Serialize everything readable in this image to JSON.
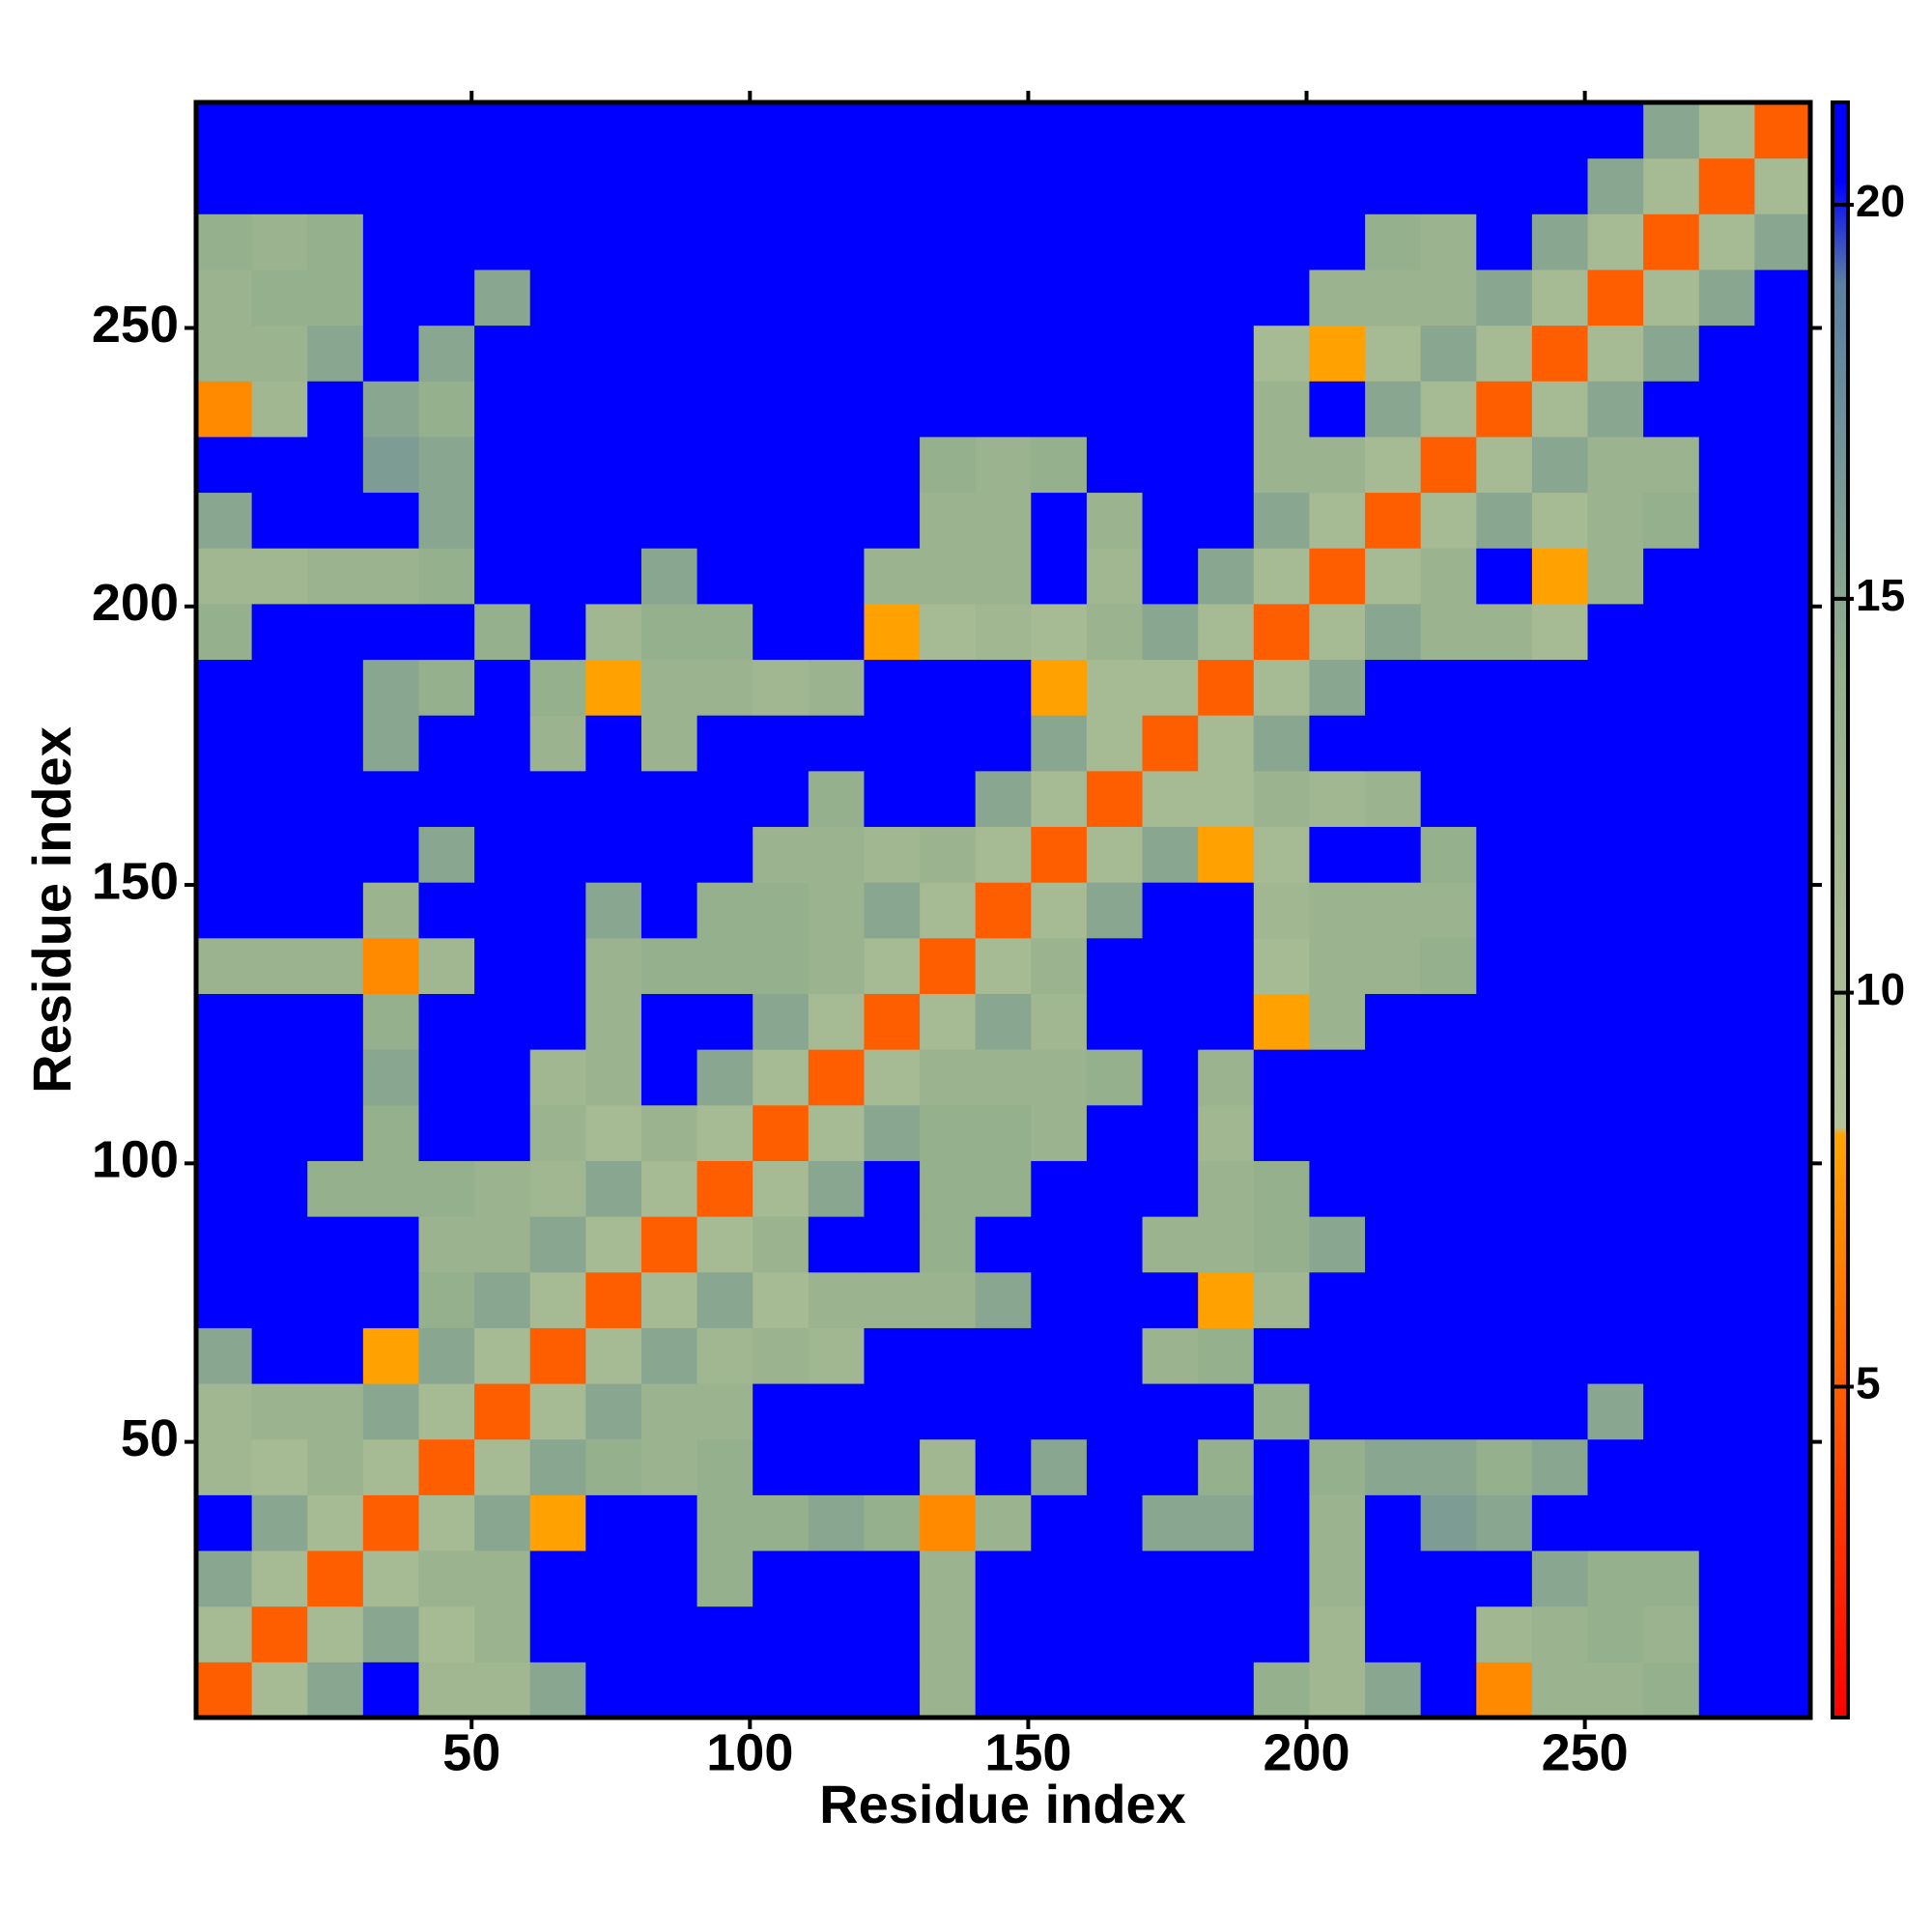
{
  "chart_data": {
    "type": "heatmap",
    "x_label": "Residue index",
    "y_label": "Residue index",
    "xbins": [
      0.5,
      10.5,
      20.5,
      30.5,
      40.5,
      50.5,
      60.5,
      70.5,
      80.5,
      90.5,
      100.5,
      110.5,
      120.5,
      130.5,
      140.5,
      150.5,
      160.5,
      170.5,
      180.5,
      190.5,
      200.5,
      210.5,
      220.5,
      230.5,
      240.5,
      250.5,
      260.5,
      270.5,
      280.5,
      290.5
    ],
    "ybins": [
      0.5,
      10.5,
      20.5,
      30.5,
      40.5,
      50.5,
      60.5,
      70.5,
      80.5,
      90.5,
      100.5,
      110.5,
      120.5,
      130.5,
      140.5,
      150.5,
      160.5,
      170.5,
      180.5,
      190.5,
      200.5,
      210.5,
      220.5,
      230.5,
      240.5,
      250.5,
      260.5,
      270.5,
      280.5,
      290.5
    ],
    "z": [
      [
        5,
        11,
        15,
        21,
        12,
        12,
        15,
        21,
        21,
        21,
        21,
        21,
        21,
        13,
        21,
        21,
        21,
        21,
        21,
        14,
        12,
        15,
        21,
        7,
        13,
        13,
        14,
        21,
        21
      ],
      [
        11,
        5,
        11,
        15,
        11,
        13,
        21,
        21,
        21,
        21,
        21,
        21,
        21,
        13,
        21,
        21,
        21,
        21,
        21,
        21,
        12,
        21,
        21,
        12,
        13,
        14,
        13,
        21,
        21
      ],
      [
        15,
        11,
        5,
        11,
        13,
        13,
        21,
        21,
        21,
        14,
        21,
        21,
        21,
        13,
        21,
        21,
        21,
        21,
        21,
        21,
        13,
        21,
        21,
        21,
        15,
        14,
        14,
        21,
        21
      ],
      [
        21,
        15,
        11,
        5,
        11,
        15,
        8,
        21,
        21,
        14,
        14,
        15,
        14,
        7,
        13,
        21,
        21,
        15,
        15,
        21,
        13,
        21,
        16,
        15,
        21,
        21,
        21,
        21,
        21
      ],
      [
        12,
        11,
        13,
        11,
        5,
        11,
        15,
        14,
        13,
        14,
        21,
        21,
        21,
        12,
        21,
        15,
        21,
        21,
        14,
        21,
        14,
        15,
        15,
        14,
        15,
        21,
        21,
        21,
        21
      ],
      [
        12,
        13,
        13,
        15,
        11,
        5,
        11,
        15,
        13,
        13,
        21,
        21,
        21,
        21,
        21,
        21,
        21,
        21,
        21,
        14,
        21,
        21,
        21,
        21,
        21,
        15,
        21,
        21,
        21
      ],
      [
        15,
        21,
        21,
        8,
        15,
        11,
        5,
        11,
        15,
        12,
        13,
        12,
        21,
        21,
        21,
        21,
        21,
        13,
        14,
        21,
        21,
        21,
        21,
        21,
        21,
        21,
        21,
        21,
        21
      ],
      [
        21,
        21,
        21,
        21,
        14,
        15,
        11,
        5,
        11,
        15,
        11,
        13,
        13,
        13,
        15,
        21,
        21,
        21,
        8,
        12,
        21,
        21,
        21,
        21,
        21,
        21,
        21,
        21,
        21
      ],
      [
        21,
        21,
        21,
        21,
        13,
        13,
        15,
        11,
        5,
        11,
        13,
        21,
        21,
        14,
        21,
        21,
        21,
        13,
        13,
        14,
        15,
        21,
        21,
        21,
        21,
        21,
        21,
        21,
        21
      ],
      [
        21,
        21,
        14,
        14,
        14,
        13,
        12,
        15,
        11,
        5,
        11,
        15,
        21,
        14,
        14,
        21,
        21,
        21,
        13,
        14,
        21,
        21,
        21,
        21,
        21,
        21,
        21,
        21,
        21
      ],
      [
        21,
        21,
        21,
        14,
        21,
        21,
        13,
        11,
        13,
        11,
        5,
        11,
        15,
        14,
        14,
        13,
        21,
        21,
        12,
        21,
        21,
        21,
        21,
        21,
        21,
        21,
        21,
        21,
        21
      ],
      [
        21,
        21,
        21,
        15,
        21,
        21,
        12,
        13,
        21,
        15,
        11,
        5,
        11,
        13,
        13,
        13,
        14,
        21,
        13,
        21,
        21,
        21,
        21,
        21,
        21,
        21,
        21,
        21,
        21
      ],
      [
        21,
        21,
        21,
        14,
        21,
        21,
        21,
        13,
        21,
        21,
        15,
        11,
        5,
        11,
        15,
        12,
        21,
        21,
        21,
        8,
        13,
        21,
        21,
        21,
        21,
        21,
        21,
        21,
        21
      ],
      [
        13,
        13,
        13,
        7,
        12,
        21,
        21,
        13,
        14,
        14,
        14,
        13,
        11,
        5,
        11,
        13,
        21,
        21,
        21,
        11,
        13,
        13,
        14,
        21,
        21,
        21,
        21,
        21,
        21
      ],
      [
        21,
        21,
        21,
        13,
        21,
        21,
        21,
        15,
        21,
        14,
        14,
        13,
        15,
        11,
        5,
        11,
        15,
        21,
        21,
        12,
        13,
        13,
        13,
        21,
        21,
        21,
        21,
        21,
        21
      ],
      [
        21,
        21,
        21,
        21,
        15,
        21,
        21,
        21,
        21,
        21,
        13,
        13,
        12,
        13,
        11,
        5,
        11,
        15,
        8,
        11,
        21,
        21,
        14,
        21,
        21,
        21,
        21,
        21,
        21
      ],
      [
        21,
        21,
        21,
        21,
        21,
        21,
        21,
        21,
        21,
        21,
        21,
        14,
        21,
        21,
        15,
        11,
        5,
        11,
        11,
        13,
        12,
        13,
        21,
        21,
        21,
        21,
        21,
        21,
        21
      ],
      [
        21,
        21,
        21,
        15,
        21,
        21,
        13,
        21,
        13,
        21,
        21,
        21,
        21,
        21,
        21,
        15,
        11,
        5,
        11,
        15,
        21,
        21,
        21,
        21,
        21,
        21,
        21,
        21,
        21
      ],
      [
        21,
        21,
        21,
        15,
        14,
        21,
        14,
        8,
        13,
        13,
        12,
        13,
        21,
        21,
        21,
        8,
        11,
        11,
        5,
        11,
        15,
        21,
        21,
        21,
        21,
        21,
        21,
        21,
        21
      ],
      [
        14,
        21,
        21,
        21,
        21,
        14,
        21,
        12,
        14,
        14,
        21,
        21,
        8,
        11,
        12,
        11,
        13,
        15,
        11,
        5,
        11,
        15,
        13,
        13,
        11,
        21,
        21,
        21,
        21
      ],
      [
        12,
        12,
        13,
        13,
        14,
        21,
        21,
        21,
        15,
        21,
        21,
        21,
        13,
        13,
        13,
        21,
        12,
        21,
        15,
        11,
        5,
        11,
        13,
        21,
        8,
        13,
        21,
        21,
        21
      ],
      [
        15,
        21,
        21,
        21,
        15,
        21,
        21,
        21,
        21,
        21,
        21,
        21,
        21,
        13,
        13,
        21,
        13,
        21,
        21,
        15,
        11,
        5,
        11,
        15,
        11,
        13,
        14,
        21,
        21
      ],
      [
        21,
        21,
        21,
        16,
        15,
        21,
        21,
        21,
        21,
        21,
        21,
        21,
        21,
        14,
        13,
        14,
        21,
        21,
        21,
        13,
        13,
        11,
        5,
        11,
        15,
        13,
        13,
        21,
        21
      ],
      [
        7,
        12,
        21,
        15,
        14,
        21,
        21,
        21,
        21,
        21,
        21,
        21,
        21,
        21,
        21,
        21,
        21,
        21,
        21,
        13,
        21,
        15,
        11,
        5,
        11,
        15,
        21,
        21,
        21
      ],
      [
        13,
        13,
        15,
        21,
        15,
        21,
        21,
        21,
        21,
        21,
        21,
        21,
        21,
        21,
        21,
        21,
        21,
        21,
        21,
        11,
        8,
        11,
        15,
        11,
        5,
        11,
        15,
        21,
        21
      ],
      [
        13,
        14,
        14,
        21,
        21,
        15,
        21,
        21,
        21,
        21,
        21,
        21,
        21,
        21,
        21,
        21,
        21,
        21,
        21,
        21,
        13,
        13,
        13,
        15,
        11,
        5,
        11,
        15,
        21
      ],
      [
        14,
        13,
        14,
        21,
        21,
        21,
        21,
        21,
        21,
        21,
        21,
        21,
        21,
        21,
        21,
        21,
        21,
        21,
        21,
        21,
        21,
        14,
        13,
        21,
        15,
        11,
        5,
        11,
        15
      ],
      [
        21,
        21,
        21,
        21,
        21,
        21,
        21,
        21,
        21,
        21,
        21,
        21,
        21,
        21,
        21,
        21,
        21,
        21,
        21,
        21,
        21,
        21,
        21,
        21,
        21,
        15,
        11,
        5,
        11
      ],
      [
        21,
        21,
        21,
        21,
        21,
        21,
        21,
        21,
        21,
        21,
        21,
        21,
        21,
        21,
        21,
        21,
        21,
        21,
        21,
        21,
        21,
        21,
        21,
        21,
        21,
        21,
        15,
        11,
        5
      ]
    ],
    "xlim": [
      0.5,
      290.5
    ],
    "ylim": [
      0.5,
      290.5
    ],
    "xticks": [
      50,
      100,
      150,
      200,
      250
    ],
    "yticks": [
      50,
      100,
      150,
      200,
      250
    ],
    "colorbar": {
      "lim": [
        0.8,
        21.3
      ],
      "ticks": [
        5,
        10,
        15,
        20
      ],
      "stops": [
        [
          0.8,
          "#ff0000"
        ],
        [
          8.2,
          "#ffa500"
        ],
        [
          8.3,
          "#b5c39a"
        ],
        [
          14,
          "#95b08c"
        ],
        [
          19,
          "#5a7fa0"
        ],
        [
          20.3,
          "#0000ff"
        ],
        [
          21.3,
          "#0000ff"
        ]
      ]
    }
  }
}
